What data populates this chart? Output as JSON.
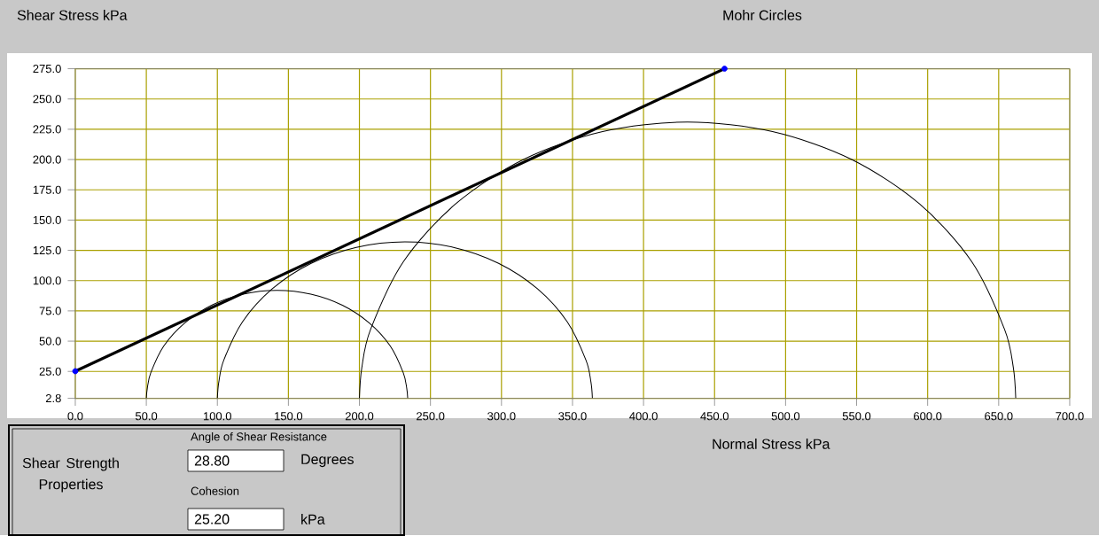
{
  "chart_data": {
    "type": "line",
    "title": "Mohr Circles",
    "xlabel": "Normal Stress  kPa",
    "ylabel": "Shear Stress  kPa",
    "xlim": [
      0,
      700
    ],
    "ylim": [
      2.8,
      275
    ],
    "xticks": [
      {
        "value": 0,
        "label": "0.0"
      },
      {
        "value": 50,
        "label": "50.0"
      },
      {
        "value": 100,
        "label": "100.0"
      },
      {
        "value": 150,
        "label": "150.0"
      },
      {
        "value": 200,
        "label": "200.0"
      },
      {
        "value": 250,
        "label": "250.0"
      },
      {
        "value": 300,
        "label": "300.0"
      },
      {
        "value": 350,
        "label": "350.0"
      },
      {
        "value": 400,
        "label": "400.0"
      },
      {
        "value": 450,
        "label": "450.0"
      },
      {
        "value": 500,
        "label": "500.0"
      },
      {
        "value": 550,
        "label": "550.0"
      },
      {
        "value": 600,
        "label": "600.0"
      },
      {
        "value": 650,
        "label": "650.0"
      },
      {
        "value": 700,
        "label": "700.0"
      }
    ],
    "yticks": [
      2.8,
      {
        "value": 25,
        "label": "25.0"
      },
      {
        "value": 50,
        "label": "50.0"
      },
      {
        "value": 75,
        "label": "75.0"
      },
      {
        "value": 100,
        "label": "100.0"
      },
      {
        "value": 125,
        "label": "125.0"
      },
      {
        "value": 150,
        "label": "150.0"
      },
      {
        "value": 175,
        "label": "175.0"
      },
      {
        "value": 200,
        "label": "200.0"
      },
      {
        "value": 225,
        "label": "225.0"
      },
      {
        "value": 250,
        "label": "250.0"
      },
      {
        "value": 275,
        "label": "275.0"
      }
    ],
    "grid": true,
    "legend": false,
    "series": [
      {
        "color": "#000000",
        "x": [
          0,
          457
        ],
        "values": [
          25.2,
          275
        ]
      },
      {
        "type": "scatter",
        "color": "#0000ff",
        "x": [
          0,
          457
        ],
        "values": [
          25.2,
          275
        ]
      },
      {
        "color": "#000000",
        "x": [
          50,
          50.7,
          53.1,
          62.3,
          77.0,
          96.0,
          118.2,
          142,
          165.8,
          188.0,
          207.0,
          221.7,
          230.9,
          233.3,
          234
        ],
        "values": [
          2.8,
          11.2,
          23.8,
          46.0,
          65.0,
          79.7,
          88.9,
          92,
          88.9,
          79.7,
          65.0,
          46.0,
          23.8,
          11.2,
          2.8
        ]
      },
      {
        "color": "#000000",
        "x": [
          100,
          101.0,
          104.5,
          117.7,
          138.7,
          166,
          197.8,
          232,
          266.2,
          298,
          325.3,
          346.3,
          359.5,
          363.0,
          364
        ],
        "values": [
          2.8,
          16.1,
          34.2,
          66.0,
          93.3,
          114.3,
          127.5,
          132,
          127.5,
          114.3,
          93.3,
          66.0,
          34.2,
          16.1,
          2.8
        ]
      },
      {
        "color": "#000000",
        "x": [
          200,
          201.7,
          207.9,
          230.9,
          267.7,
          315.5,
          371.2,
          431,
          490.8,
          546.5,
          594.3,
          631.1,
          654.1,
          660.3,
          662
        ],
        "values": [
          2.8,
          28.2,
          59.8,
          115.5,
          163.3,
          200.1,
          223.1,
          231,
          223.1,
          200.1,
          163.3,
          115.5,
          59.8,
          28.2,
          2.8
        ]
      }
    ],
    "annotations": [
      "Shear Strength Properties",
      "Angle of Shear Resistance",
      "28.80",
      "Degrees",
      "Cohesion",
      "25.20",
      "kPa"
    ]
  }
}
